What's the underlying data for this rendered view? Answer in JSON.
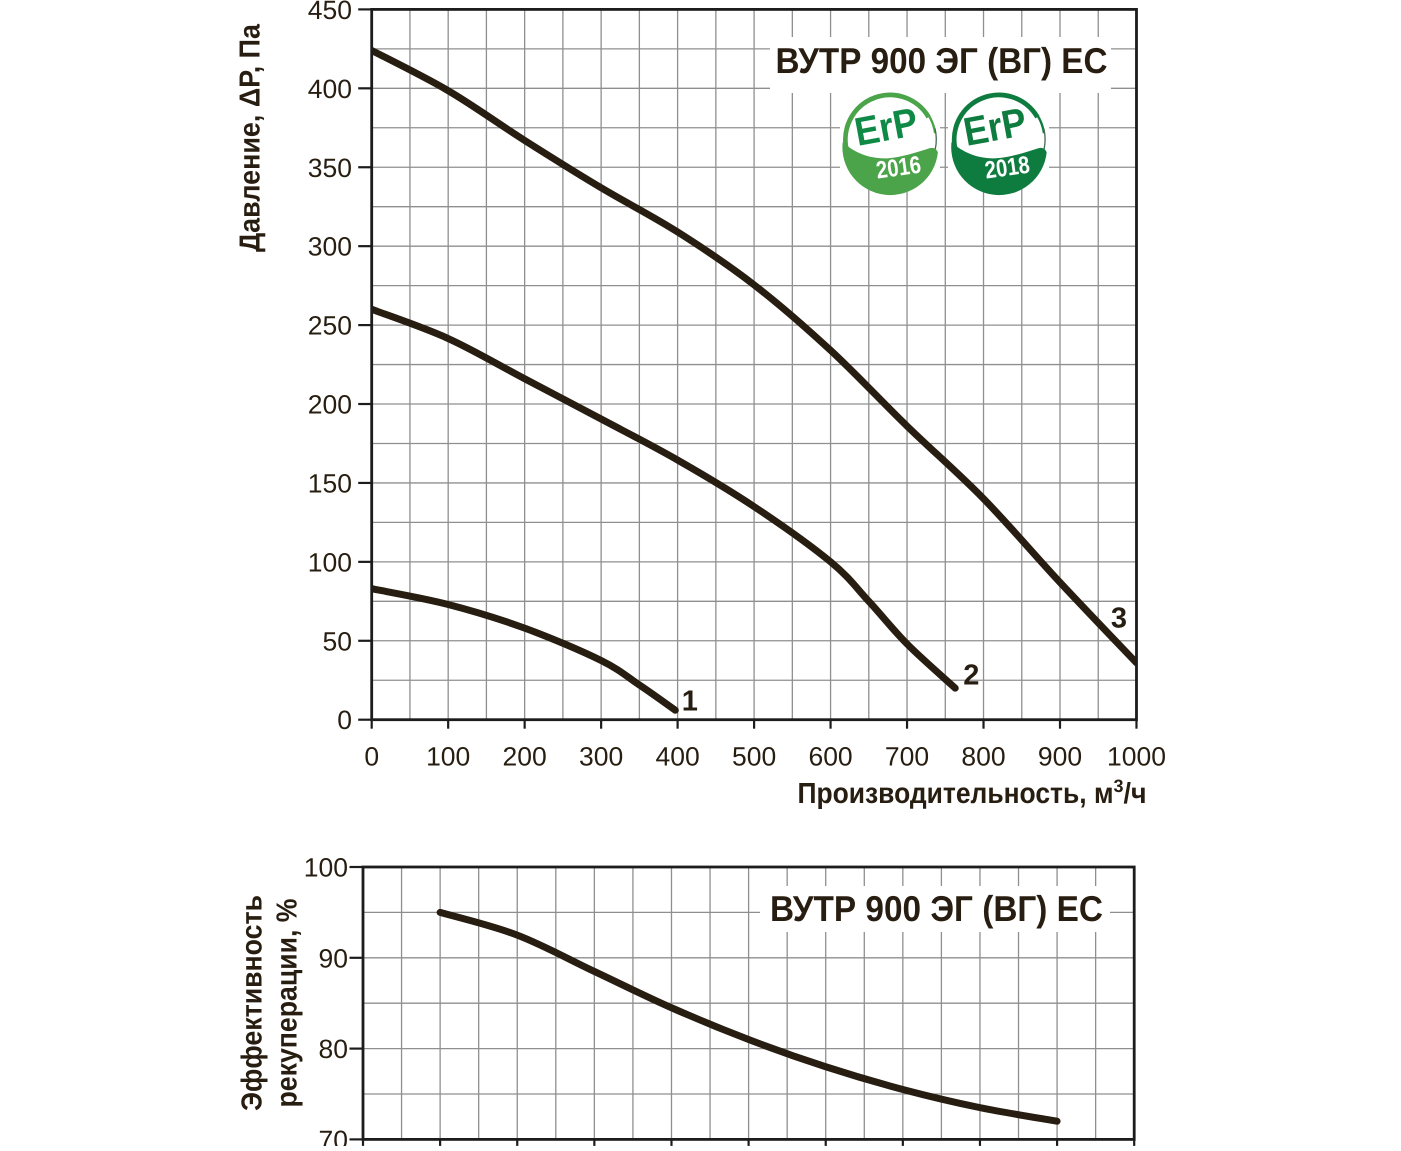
{
  "page": {
    "background": "#ffffff",
    "ink_color": "#271d10",
    "grid_color": "#8f8f8f",
    "axis_color": "#1c1c1c",
    "curve_color": "#271d10"
  },
  "chart_data": [
    {
      "type": "line",
      "title": "ВУТР 900 ЭГ (ВГ) ЕС",
      "xlabel": "Производительность, м³/ч",
      "xlabel_parts": {
        "base": "Производительность, м",
        "sup": "3",
        "tail": "/ч"
      },
      "ylabel": "Давление, ΔP, Па",
      "xlim": [
        0,
        1000
      ],
      "ylim": [
        0,
        450
      ],
      "x_tick_step": 100,
      "x_grid_step": 50,
      "y_tick_step": 50,
      "y_grid_step": 25,
      "grid": true,
      "legend_position": "none",
      "x_tick_labels": [
        "0",
        "100",
        "200",
        "300",
        "400",
        "500",
        "600",
        "700",
        "800",
        "900",
        "1000"
      ],
      "y_tick_labels": [
        "450",
        "400",
        "350",
        "300",
        "250",
        "200",
        "150",
        "100",
        "50",
        "0"
      ],
      "series": [
        {
          "name": "1",
          "points": [
            [
              0,
              83
            ],
            [
              100,
              73
            ],
            [
              200,
              58
            ],
            [
              300,
              37.5
            ],
            [
              350,
              22
            ],
            [
              397,
              6
            ]
          ],
          "label_pos": [
            416,
            12.5
          ]
        },
        {
          "name": "2",
          "points": [
            [
              0,
              260
            ],
            [
              100,
              241.5
            ],
            [
              200,
              216
            ],
            [
              300,
              190.5
            ],
            [
              400,
              164.5
            ],
            [
              500,
              135
            ],
            [
              600,
              100
            ],
            [
              650,
              75
            ],
            [
              700,
              48
            ],
            [
              763,
              20
            ]
          ],
          "label_pos": [
            784,
            29
          ]
        },
        {
          "name": "3",
          "points": [
            [
              0,
              424
            ],
            [
              100,
              398.5
            ],
            [
              200,
              367
            ],
            [
              300,
              337
            ],
            [
              400,
              309
            ],
            [
              500,
              275.5
            ],
            [
              600,
              234
            ],
            [
              700,
              186
            ],
            [
              800,
              140
            ],
            [
              900,
              87
            ],
            [
              1000,
              36
            ]
          ],
          "label_pos": [
            977,
            65
          ]
        }
      ]
    },
    {
      "type": "line",
      "title": "ВУТР 900 ЭГ (ВГ) ЕС",
      "xlabel": "",
      "ylabel": "Эффективность рекуперации, %",
      "ylabel_lines": [
        "Эффективность",
        "рекуперации, %"
      ],
      "xlim": [
        0,
        1000
      ],
      "ylim": [
        70,
        100
      ],
      "x_tick_step": 100,
      "x_grid_step": 50,
      "y_tick_step": 10,
      "y_grid_step": 5,
      "grid": true,
      "legend_position": "none",
      "x_tick_labels": [],
      "y_tick_labels": [
        "100",
        "90",
        "80",
        "70"
      ],
      "series": [
        {
          "name": "",
          "points": [
            [
              100,
              95
            ],
            [
              200,
              92.5
            ],
            [
              300,
              88.5
            ],
            [
              400,
              84.5
            ],
            [
              500,
              81
            ],
            [
              600,
              78
            ],
            [
              700,
              75.5
            ],
            [
              800,
              73.5
            ],
            [
              900,
              72
            ]
          ],
          "label_pos": null
        }
      ]
    }
  ],
  "badges": [
    {
      "label": "ErP",
      "year": "2016",
      "main_color": "#4ba449",
      "erp_text_color": "#0f8a46",
      "year_text_color": "#ffffff",
      "thin_arc_color": "#44694f"
    },
    {
      "label": "ErP",
      "year": "2018",
      "main_color": "#0e7c3f",
      "erp_text_color": "#0e7c3f",
      "year_text_color": "#ffffff",
      "thin_arc_color": "#44694f"
    }
  ]
}
